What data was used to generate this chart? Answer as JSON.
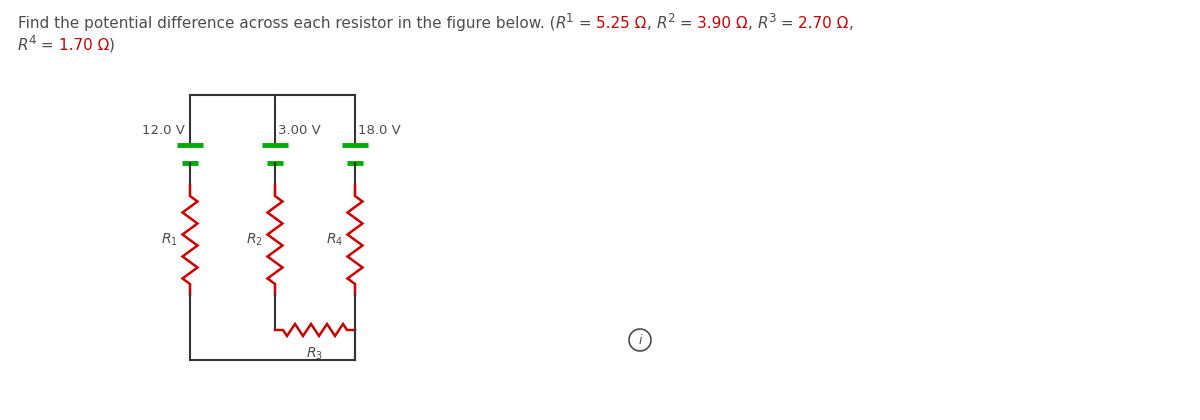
{
  "bg_color": "#ffffff",
  "circuit_color": "#333333",
  "resistor_color": "#cc0000",
  "battery_green": "#00aa00",
  "gray": "#4d4d4d",
  "red": "#cc0000",
  "voltage_labels": [
    "12.0 V",
    "3.00 V",
    "18.0 V"
  ],
  "fs_title": 11.0,
  "fs_circuit": 9.5,
  "fs_label": 9.5
}
